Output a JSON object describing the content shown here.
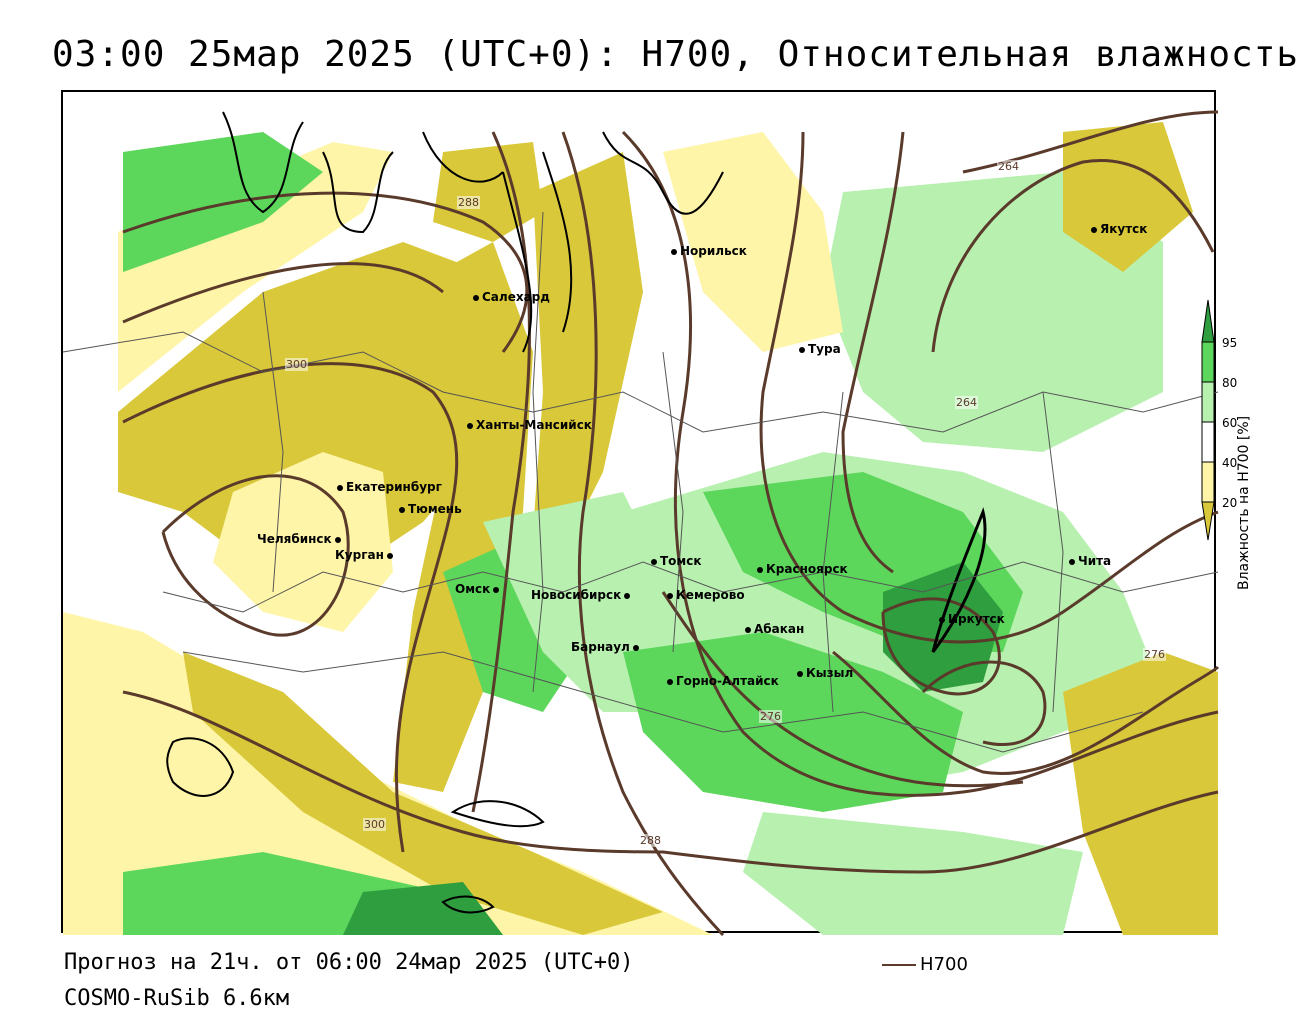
{
  "title": "03:00 25мар 2025 (UTC+0): H700, Относительная влажность",
  "cities": [
    {
      "name": "Якутск"
    },
    {
      "name": "Норильск"
    },
    {
      "name": "Салехард"
    },
    {
      "name": "Тура"
    },
    {
      "name": "Ханты-Мансийск"
    },
    {
      "name": "Екатеринбург"
    },
    {
      "name": "Тюмень"
    },
    {
      "name": "Челябинск"
    },
    {
      "name": "Курган"
    },
    {
      "name": "Омск"
    },
    {
      "name": "Новосибирск"
    },
    {
      "name": "Томск"
    },
    {
      "name": "Кемерово"
    },
    {
      "name": "Красноярск"
    },
    {
      "name": "Абакан"
    },
    {
      "name": "Барнаул"
    },
    {
      "name": "Горно-Алтайск"
    },
    {
      "name": "Кызыл"
    },
    {
      "name": "Иркутск"
    },
    {
      "name": "Чита"
    }
  ],
  "contour_labels": [
    "264",
    "288",
    "300",
    "264",
    "276",
    "276",
    "300",
    "288"
  ],
  "legend": {
    "title": "Влажность на H700 [%]",
    "ticks": [
      "95",
      "80",
      "60",
      "40",
      "20"
    ],
    "colors": [
      "#2e9e3e",
      "#5cd75c",
      "#b8f0b0",
      "#ffffff",
      "#fff5a8",
      "#d9c83a"
    ]
  },
  "footer": {
    "forecast": "Прогноз на 21ч. от 06:00 24мар 2025 (UTC+0)",
    "model": "COSMO-RuSib 6.6км"
  },
  "key_label": "H700",
  "colors": {
    "contour": "#5a3a2a",
    "dry_dark": "#d9c83a",
    "dry_light": "#fff5a8",
    "wet_light": "#b8f0b0",
    "wet_mid": "#5cd75c",
    "wet_dark": "#2e9e3e"
  }
}
